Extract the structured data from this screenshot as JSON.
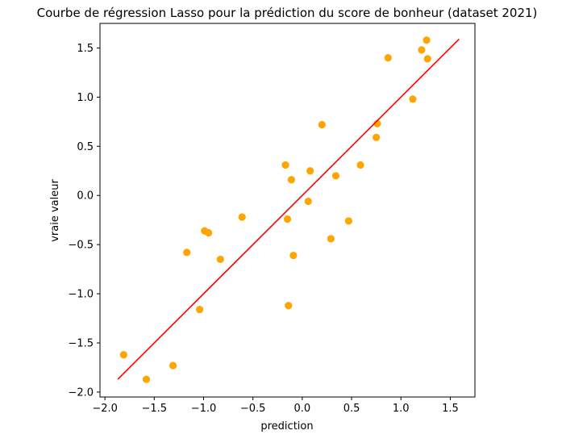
{
  "chart_data": {
    "type": "scatter",
    "title": "Courbe de régression Lasso pour la prédiction du score de bonheur (dataset 2021)",
    "xlabel": "prediction",
    "ylabel": "vraie valeur",
    "xlim": [
      -2.05,
      1.75
    ],
    "ylim": [
      -2.05,
      1.75
    ],
    "grid": false,
    "x_ticks": [
      -2.0,
      -1.5,
      -1.0,
      -0.5,
      0.0,
      0.5,
      1.0,
      1.5
    ],
    "x_tick_labels": [
      "−2.0",
      "−1.5",
      "−1.0",
      "−0.5",
      "0.0",
      "0.5",
      "1.0",
      "1.5"
    ],
    "y_ticks": [
      -2.0,
      -1.5,
      -1.0,
      -0.5,
      0.0,
      0.5,
      1.0,
      1.5
    ],
    "y_tick_labels": [
      "−2.0",
      "−1.5",
      "−1.0",
      "−0.5",
      "0.0",
      "0.5",
      "1.0",
      "1.5"
    ],
    "point_color": "#FFA500",
    "line_color": "#FF0000",
    "points": [
      {
        "x": -1.81,
        "y": -1.62
      },
      {
        "x": -1.58,
        "y": -1.87
      },
      {
        "x": -1.31,
        "y": -1.73
      },
      {
        "x": -1.17,
        "y": -0.58
      },
      {
        "x": -1.04,
        "y": -1.16
      },
      {
        "x": -0.99,
        "y": -0.36
      },
      {
        "x": -0.95,
        "y": -0.38
      },
      {
        "x": -0.83,
        "y": -0.65
      },
      {
        "x": -0.61,
        "y": -0.22
      },
      {
        "x": -0.17,
        "y": 0.31
      },
      {
        "x": -0.15,
        "y": -0.24
      },
      {
        "x": -0.14,
        "y": -1.12
      },
      {
        "x": -0.11,
        "y": 0.16
      },
      {
        "x": -0.09,
        "y": -0.61
      },
      {
        "x": 0.06,
        "y": -0.06
      },
      {
        "x": 0.08,
        "y": 0.25
      },
      {
        "x": 0.2,
        "y": 0.72
      },
      {
        "x": 0.29,
        "y": -0.44
      },
      {
        "x": 0.34,
        "y": 0.2
      },
      {
        "x": 0.47,
        "y": -0.26
      },
      {
        "x": 0.59,
        "y": 0.31
      },
      {
        "x": 0.75,
        "y": 0.59
      },
      {
        "x": 0.76,
        "y": 0.73
      },
      {
        "x": 0.87,
        "y": 1.4
      },
      {
        "x": 1.12,
        "y": 0.98
      },
      {
        "x": 1.21,
        "y": 1.48
      },
      {
        "x": 1.26,
        "y": 1.58
      },
      {
        "x": 1.27,
        "y": 1.39
      }
    ],
    "line": {
      "x": [
        -1.87,
        1.59
      ],
      "y": [
        -1.87,
        1.59
      ]
    }
  }
}
